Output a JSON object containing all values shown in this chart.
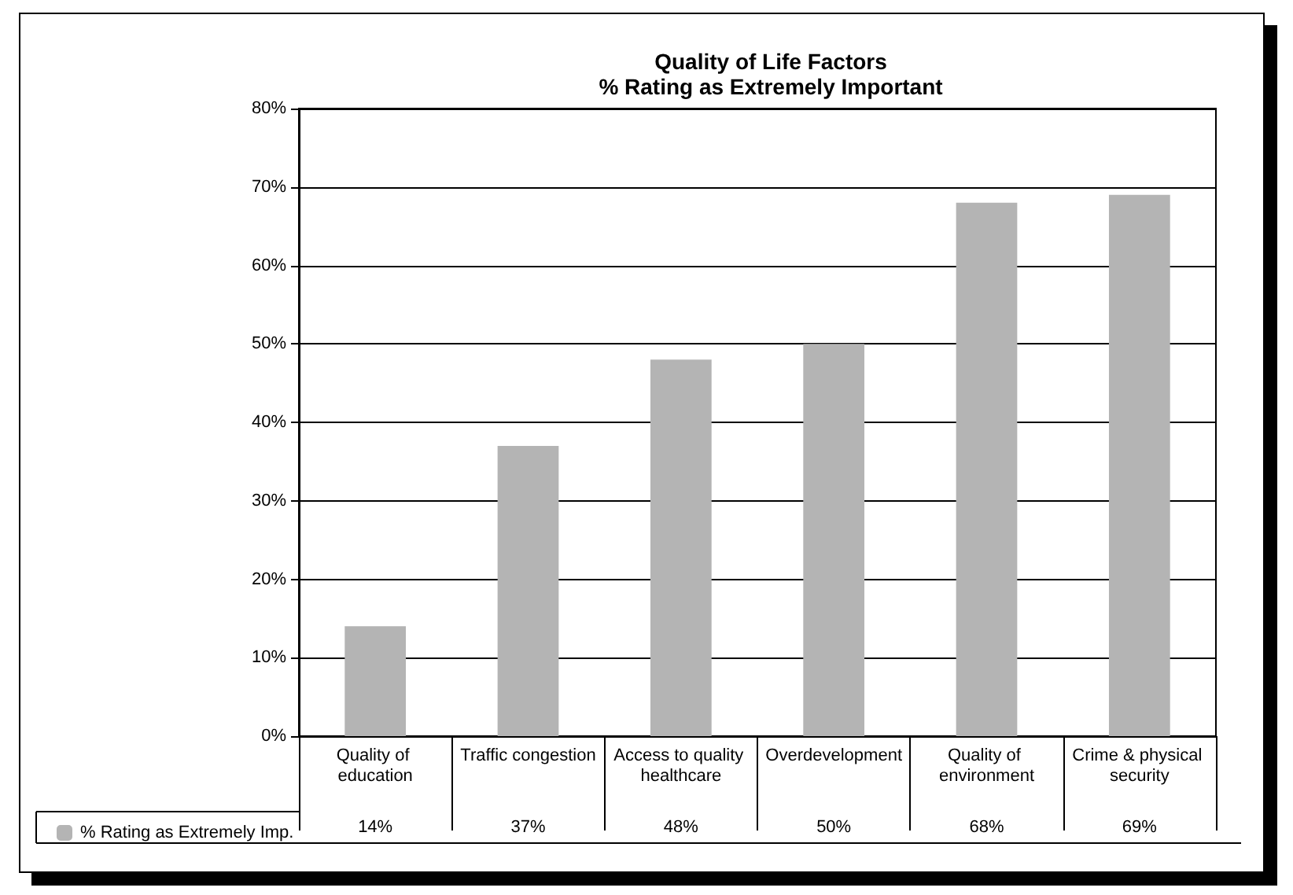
{
  "chart_data": {
    "type": "bar",
    "title": "Quality of Life Factors",
    "subtitle": "% Rating as Extremely Important",
    "categories": [
      "Quality of education",
      "Traffic congestion",
      "Access to quality healthcare",
      "Overdevelopment",
      "Quality of environment",
      "Crime & physical security"
    ],
    "series": [
      {
        "name": "% Rating as Extremely Imp.",
        "color": "#b4b4b4",
        "values": [
          14,
          37,
          48,
          50,
          68,
          69
        ],
        "value_labels": [
          "14%",
          "37%",
          "48%",
          "50%",
          "68%",
          "69%"
        ]
      }
    ],
    "ylim": [
      0,
      80
    ],
    "yticks": [
      {
        "value": 0,
        "label": "0%"
      },
      {
        "value": 10,
        "label": "10%"
      },
      {
        "value": 20,
        "label": "20%"
      },
      {
        "value": 30,
        "label": "30%"
      },
      {
        "value": 40,
        "label": "40%"
      },
      {
        "value": 50,
        "label": "50%"
      },
      {
        "value": 60,
        "label": "60%"
      },
      {
        "value": 70,
        "label": "70%"
      },
      {
        "value": 80,
        "label": "80%"
      }
    ],
    "grid": "y",
    "legend": "bottom left"
  }
}
